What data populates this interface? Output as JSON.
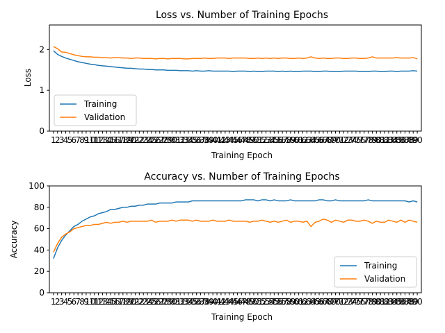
{
  "chart_data": [
    {
      "type": "line",
      "title": "Loss vs. Number of Training Epochs",
      "xlabel": "Training Epoch",
      "ylabel": "Loss",
      "ylim": [
        0,
        2.6
      ],
      "yticks": [
        0,
        1,
        2
      ],
      "xlim": [
        0,
        91
      ],
      "xtick_labels": [
        "1",
        "2",
        "3",
        "4",
        "5",
        "6",
        "7",
        "8",
        "9",
        "10",
        "11",
        "12",
        "13",
        "14",
        "15",
        "16",
        "17",
        "18",
        "19",
        "20",
        "21",
        "22",
        "23",
        "24",
        "25",
        "26",
        "27",
        "28",
        "29",
        "30",
        "31",
        "32",
        "33",
        "34",
        "35",
        "36",
        "37",
        "38",
        "39",
        "40",
        "41",
        "42",
        "43",
        "44",
        "45",
        "46",
        "47",
        "48",
        "49",
        "50",
        "51",
        "52",
        "53",
        "54",
        "55",
        "56",
        "57",
        "58",
        "59",
        "60",
        "61",
        "62",
        "63",
        "64",
        "65",
        "66",
        "67",
        "68",
        "69",
        "70",
        "71",
        "72",
        "73",
        "74",
        "75",
        "76",
        "77",
        "78",
        "79",
        "80",
        "81",
        "82",
        "83",
        "84",
        "85",
        "86",
        "87",
        "88",
        "89",
        "90"
      ],
      "legend_position": "lower-left",
      "grid": false,
      "series": [
        {
          "name": "Training",
          "color": "#1f77b4",
          "values": [
            1.97,
            1.88,
            1.83,
            1.79,
            1.76,
            1.73,
            1.7,
            1.68,
            1.66,
            1.64,
            1.63,
            1.61,
            1.6,
            1.59,
            1.58,
            1.57,
            1.56,
            1.55,
            1.54,
            1.54,
            1.53,
            1.52,
            1.52,
            1.51,
            1.51,
            1.5,
            1.5,
            1.5,
            1.49,
            1.49,
            1.49,
            1.48,
            1.48,
            1.48,
            1.47,
            1.48,
            1.47,
            1.47,
            1.48,
            1.47,
            1.47,
            1.47,
            1.47,
            1.47,
            1.46,
            1.47,
            1.47,
            1.47,
            1.46,
            1.47,
            1.46,
            1.46,
            1.47,
            1.47,
            1.47,
            1.46,
            1.47,
            1.46,
            1.47,
            1.46,
            1.46,
            1.47,
            1.47,
            1.47,
            1.46,
            1.46,
            1.47,
            1.47,
            1.46,
            1.46,
            1.46,
            1.47,
            1.47,
            1.47,
            1.47,
            1.46,
            1.46,
            1.46,
            1.47,
            1.47,
            1.46,
            1.46,
            1.47,
            1.47,
            1.46,
            1.47,
            1.47,
            1.47,
            1.48,
            1.47
          ]
        },
        {
          "name": "Validation",
          "color": "#ff7f0e",
          "values": [
            2.07,
            2.02,
            1.94,
            1.93,
            1.9,
            1.87,
            1.85,
            1.83,
            1.82,
            1.82,
            1.81,
            1.81,
            1.8,
            1.8,
            1.79,
            1.8,
            1.8,
            1.79,
            1.79,
            1.78,
            1.79,
            1.79,
            1.78,
            1.78,
            1.78,
            1.77,
            1.78,
            1.78,
            1.77,
            1.78,
            1.78,
            1.78,
            1.77,
            1.77,
            1.78,
            1.78,
            1.78,
            1.79,
            1.78,
            1.78,
            1.79,
            1.79,
            1.79,
            1.78,
            1.79,
            1.79,
            1.79,
            1.79,
            1.78,
            1.78,
            1.79,
            1.78,
            1.79,
            1.78,
            1.79,
            1.78,
            1.79,
            1.79,
            1.78,
            1.78,
            1.79,
            1.78,
            1.79,
            1.82,
            1.79,
            1.78,
            1.79,
            1.78,
            1.78,
            1.79,
            1.79,
            1.78,
            1.78,
            1.79,
            1.79,
            1.78,
            1.78,
            1.79,
            1.82,
            1.79,
            1.79,
            1.79,
            1.79,
            1.79,
            1.8,
            1.79,
            1.79,
            1.79,
            1.8,
            1.77
          ]
        }
      ]
    },
    {
      "type": "line",
      "title": "Accuracy vs. Number of Training Epochs",
      "xlabel": "Training Epoch",
      "ylabel": "Accuracy",
      "ylim": [
        0,
        100
      ],
      "yticks": [
        0,
        20,
        40,
        60,
        80,
        100
      ],
      "xlim": [
        0,
        91
      ],
      "xtick_labels": [
        "1",
        "2",
        "3",
        "4",
        "5",
        "6",
        "7",
        "8",
        "9",
        "10",
        "11",
        "12",
        "13",
        "14",
        "15",
        "16",
        "17",
        "18",
        "19",
        "20",
        "21",
        "22",
        "23",
        "24",
        "25",
        "26",
        "27",
        "28",
        "29",
        "30",
        "31",
        "32",
        "33",
        "34",
        "35",
        "36",
        "37",
        "38",
        "39",
        "40",
        "41",
        "42",
        "43",
        "44",
        "45",
        "46",
        "47",
        "48",
        "49",
        "50",
        "51",
        "52",
        "53",
        "54",
        "55",
        "56",
        "57",
        "58",
        "59",
        "60",
        "61",
        "62",
        "63",
        "64",
        "65",
        "66",
        "67",
        "68",
        "69",
        "70",
        "71",
        "72",
        "73",
        "74",
        "75",
        "76",
        "77",
        "78",
        "79",
        "80",
        "81",
        "82",
        "83",
        "84",
        "85",
        "86",
        "87",
        "88",
        "89",
        "90"
      ],
      "legend_position": "lower-right",
      "grid": false,
      "series": [
        {
          "name": "Training",
          "color": "#1f77b4",
          "values": [
            32,
            42,
            49,
            54,
            58,
            62,
            64,
            67,
            69,
            71,
            72,
            74,
            75,
            76,
            78,
            78,
            79,
            80,
            80,
            81,
            81,
            82,
            82,
            83,
            83,
            83,
            84,
            84,
            84,
            84,
            85,
            85,
            85,
            85,
            86,
            86,
            86,
            86,
            86,
            86,
            86,
            86,
            86,
            86,
            86,
            86,
            86,
            87,
            87,
            87,
            86,
            87,
            87,
            86,
            87,
            86,
            86,
            86,
            87,
            86,
            86,
            86,
            86,
            86,
            86,
            87,
            87,
            86,
            86,
            87,
            86,
            86,
            86,
            86,
            86,
            86,
            86,
            87,
            86,
            86,
            86,
            86,
            86,
            86,
            86,
            86,
            86,
            85,
            86,
            85
          ]
        },
        {
          "name": "Validation",
          "color": "#ff7f0e",
          "values": [
            38,
            46,
            52,
            55,
            57,
            60,
            61,
            62,
            63,
            63,
            64,
            64,
            65,
            66,
            65,
            66,
            66,
            67,
            66,
            67,
            67,
            67,
            67,
            67,
            68,
            66,
            67,
            67,
            67,
            68,
            67,
            68,
            68,
            68,
            67,
            68,
            67,
            67,
            67,
            68,
            67,
            67,
            67,
            68,
            67,
            67,
            67,
            67,
            66,
            67,
            67,
            68,
            67,
            66,
            67,
            66,
            67,
            68,
            66,
            67,
            67,
            66,
            67,
            62,
            66,
            67,
            69,
            68,
            66,
            68,
            67,
            66,
            68,
            68,
            67,
            67,
            68,
            67,
            65,
            67,
            66,
            66,
            68,
            67,
            66,
            68,
            66,
            68,
            67,
            66
          ]
        }
      ]
    }
  ]
}
